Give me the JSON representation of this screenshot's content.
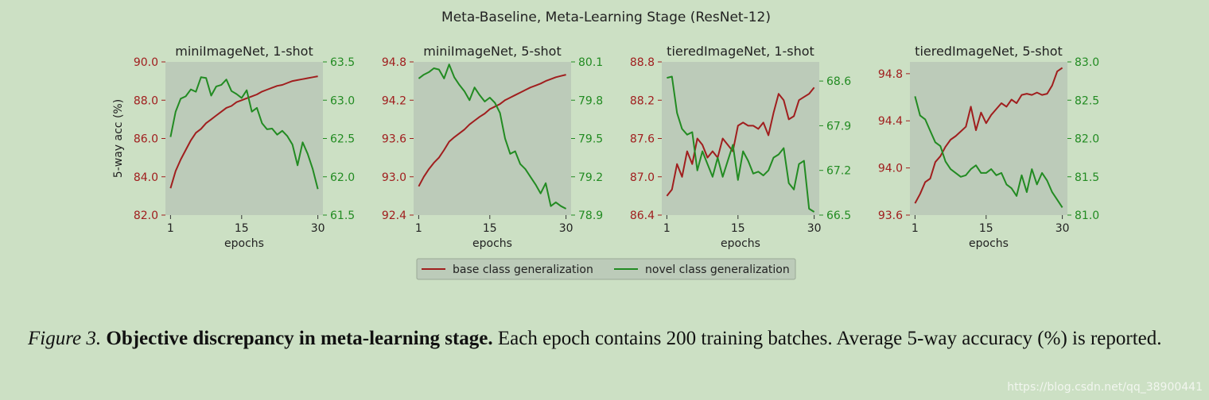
{
  "figure": {
    "title": "Meta-Baseline, Meta-Learning Stage (ResNet-12)",
    "legend": {
      "placement": "bottom-center",
      "items": [
        "base class generalization",
        "novel class generalization"
      ]
    },
    "colors": {
      "base": "#a01e1e",
      "novel": "#228b22",
      "plot_bg": "#bccbb9",
      "page_bg": "#cce0c4"
    }
  },
  "caption": {
    "label": "Figure 3.",
    "title": "Objective discrepancy in meta-learning stage.",
    "text": " Each epoch contains 200 training batches.  Average 5-way accuracy (%) is reported."
  },
  "watermark": "https://blog.csdn.net/qq_38900441",
  "chart_data": [
    {
      "type": "line",
      "title": "miniImageNet, 1-shot",
      "xlabel": "epochs",
      "ylabel": "5-way acc (%)",
      "xticks": [
        1,
        15,
        30
      ],
      "xlim": [
        0,
        31
      ],
      "left_ylim": [
        82.0,
        90.0
      ],
      "left_yticks": [
        "82.0",
        "84.0",
        "86.0",
        "88.0",
        "90.0"
      ],
      "right_ylim": [
        61.5,
        63.5
      ],
      "right_yticks": [
        "61.5",
        "62.0",
        "62.5",
        "63.0",
        "63.5"
      ],
      "series": [
        {
          "name": "base class generalization",
          "axis": "left",
          "x": [
            1,
            2,
            3,
            4,
            5,
            6,
            7,
            8,
            9,
            10,
            11,
            12,
            13,
            14,
            15,
            16,
            17,
            18,
            19,
            20,
            21,
            22,
            23,
            24,
            25,
            26,
            27,
            28,
            29,
            30
          ],
          "values": [
            83.4,
            84.3,
            84.9,
            85.4,
            85.9,
            86.3,
            86.5,
            86.8,
            87.0,
            87.2,
            87.4,
            87.6,
            87.7,
            87.9,
            88.0,
            88.1,
            88.2,
            88.3,
            88.45,
            88.55,
            88.65,
            88.75,
            88.8,
            88.9,
            89.0,
            89.05,
            89.1,
            89.15,
            89.2,
            89.25
          ]
        },
        {
          "name": "novel class generalization",
          "axis": "right",
          "x": [
            1,
            2,
            3,
            4,
            5,
            6,
            7,
            8,
            9,
            10,
            11,
            12,
            13,
            14,
            15,
            16,
            17,
            18,
            19,
            20,
            21,
            22,
            23,
            24,
            25,
            26,
            27,
            28,
            29,
            30
          ],
          "values": [
            62.52,
            62.85,
            63.02,
            63.05,
            63.14,
            63.11,
            63.3,
            63.29,
            63.06,
            63.18,
            63.2,
            63.27,
            63.12,
            63.08,
            63.03,
            63.13,
            62.85,
            62.9,
            62.7,
            62.62,
            62.63,
            62.55,
            62.6,
            62.53,
            62.42,
            62.15,
            62.45,
            62.3,
            62.1,
            61.84
          ]
        }
      ]
    },
    {
      "type": "line",
      "title": "miniImageNet, 5-shot",
      "xlabel": "epochs",
      "xticks": [
        1,
        15,
        30
      ],
      "xlim": [
        0,
        31
      ],
      "left_ylim": [
        92.4,
        94.8
      ],
      "left_yticks": [
        "92.4",
        "93.0",
        "93.6",
        "94.2",
        "94.8"
      ],
      "right_ylim": [
        78.9,
        80.1
      ],
      "right_yticks": [
        "78.9",
        "79.2",
        "79.5",
        "79.8",
        "80.1"
      ],
      "series": [
        {
          "name": "base class generalization",
          "axis": "left",
          "x": [
            1,
            2,
            3,
            4,
            5,
            6,
            7,
            8,
            9,
            10,
            11,
            12,
            13,
            14,
            15,
            16,
            17,
            18,
            19,
            20,
            21,
            22,
            23,
            24,
            25,
            26,
            27,
            28,
            29,
            30
          ],
          "values": [
            92.85,
            93.0,
            93.12,
            93.22,
            93.3,
            93.42,
            93.55,
            93.62,
            93.68,
            93.74,
            93.82,
            93.88,
            93.94,
            93.99,
            94.06,
            94.1,
            94.14,
            94.2,
            94.24,
            94.28,
            94.32,
            94.36,
            94.4,
            94.43,
            94.46,
            94.5,
            94.53,
            94.56,
            94.58,
            94.6
          ]
        },
        {
          "name": "novel class generalization",
          "axis": "right",
          "x": [
            1,
            2,
            3,
            4,
            5,
            6,
            7,
            8,
            9,
            10,
            11,
            12,
            13,
            14,
            15,
            16,
            17,
            18,
            19,
            20,
            21,
            22,
            23,
            24,
            25,
            26,
            27,
            28,
            29,
            30
          ],
          "values": [
            79.97,
            80.0,
            80.02,
            80.05,
            80.04,
            79.97,
            80.08,
            79.98,
            79.92,
            79.87,
            79.8,
            79.9,
            79.84,
            79.79,
            79.82,
            79.78,
            79.7,
            79.5,
            79.38,
            79.4,
            79.3,
            79.26,
            79.2,
            79.14,
            79.07,
            79.15,
            78.97,
            79.0,
            78.97,
            78.95
          ]
        }
      ]
    },
    {
      "type": "line",
      "title": "tieredImageNet, 1-shot",
      "xlabel": "epochs",
      "xticks": [
        1,
        15,
        30
      ],
      "xlim": [
        0,
        31
      ],
      "left_ylim": [
        86.4,
        88.8
      ],
      "left_yticks": [
        "86.4",
        "87.0",
        "87.6",
        "88.2",
        "88.8"
      ],
      "right_ylim": [
        66.5,
        68.9
      ],
      "right_yticks": [
        "66.5",
        "67.2",
        "67.9",
        "68.6"
      ],
      "series": [
        {
          "name": "base class generalization",
          "axis": "left",
          "x": [
            1,
            2,
            3,
            4,
            5,
            6,
            7,
            8,
            9,
            10,
            11,
            12,
            13,
            14,
            15,
            16,
            17,
            18,
            19,
            20,
            21,
            22,
            23,
            24,
            25,
            26,
            27,
            28,
            29,
            30
          ],
          "values": [
            86.7,
            86.8,
            87.2,
            87.0,
            87.4,
            87.2,
            87.6,
            87.5,
            87.3,
            87.4,
            87.3,
            87.6,
            87.5,
            87.4,
            87.8,
            87.85,
            87.8,
            87.8,
            87.75,
            87.85,
            87.65,
            88.0,
            88.3,
            88.2,
            87.9,
            87.95,
            88.2,
            88.25,
            88.3,
            88.4
          ]
        },
        {
          "name": "novel class generalization",
          "axis": "right",
          "x": [
            1,
            2,
            3,
            4,
            5,
            6,
            7,
            8,
            9,
            10,
            11,
            12,
            13,
            14,
            15,
            16,
            17,
            18,
            19,
            20,
            21,
            22,
            23,
            24,
            25,
            26,
            27,
            28,
            29,
            30
          ],
          "values": [
            68.65,
            68.67,
            68.1,
            67.85,
            67.76,
            67.8,
            67.2,
            67.5,
            67.3,
            67.1,
            67.4,
            67.1,
            67.35,
            67.6,
            67.05,
            67.5,
            67.35,
            67.15,
            67.18,
            67.12,
            67.2,
            67.4,
            67.45,
            67.55,
            67.0,
            66.9,
            67.3,
            67.35,
            66.6,
            66.55
          ]
        }
      ]
    },
    {
      "type": "line",
      "title": "tieredImageNet, 5-shot",
      "xlabel": "epochs",
      "xticks": [
        1,
        15,
        30
      ],
      "xlim": [
        0,
        31
      ],
      "left_ylim": [
        93.6,
        94.9
      ],
      "left_yticks": [
        "93.6",
        "94.0",
        "94.4",
        "94.8"
      ],
      "right_ylim": [
        81.0,
        83.0
      ],
      "right_yticks": [
        "81.0",
        "81.5",
        "82.0",
        "82.5",
        "83.0"
      ],
      "series": [
        {
          "name": "base class generalization",
          "axis": "left",
          "x": [
            1,
            2,
            3,
            4,
            5,
            6,
            7,
            8,
            9,
            10,
            11,
            12,
            13,
            14,
            15,
            16,
            17,
            18,
            19,
            20,
            21,
            22,
            23,
            24,
            25,
            26,
            27,
            28,
            29,
            30
          ],
          "values": [
            93.7,
            93.78,
            93.88,
            93.91,
            94.05,
            94.1,
            94.18,
            94.24,
            94.27,
            94.31,
            94.35,
            94.52,
            94.32,
            94.47,
            94.38,
            94.45,
            94.5,
            94.55,
            94.52,
            94.58,
            94.55,
            94.62,
            94.63,
            94.62,
            94.64,
            94.62,
            94.63,
            94.7,
            94.82,
            94.85
          ]
        },
        {
          "name": "novel class generalization",
          "axis": "right",
          "x": [
            1,
            2,
            3,
            4,
            5,
            6,
            7,
            8,
            9,
            10,
            11,
            12,
            13,
            14,
            15,
            16,
            17,
            18,
            19,
            20,
            21,
            22,
            23,
            24,
            25,
            26,
            27,
            28,
            29,
            30
          ],
          "values": [
            82.55,
            82.3,
            82.25,
            82.1,
            81.95,
            81.9,
            81.7,
            81.6,
            81.55,
            81.5,
            81.52,
            81.6,
            81.65,
            81.55,
            81.55,
            81.6,
            81.52,
            81.55,
            81.4,
            81.35,
            81.25,
            81.52,
            81.3,
            81.6,
            81.4,
            81.55,
            81.45,
            81.3,
            81.2,
            81.1
          ]
        }
      ]
    }
  ]
}
